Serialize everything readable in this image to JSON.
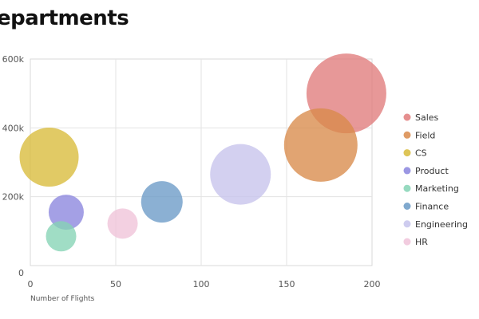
{
  "chart_data": {
    "type": "bubble",
    "title": "epartments",
    "xlabel": "Number of Flights",
    "ylabel": "",
    "xlim": [
      0,
      200
    ],
    "ylim": [
      0,
      600000
    ],
    "x_ticks": [
      {
        "value": 0,
        "label": "0"
      },
      {
        "value": 50,
        "label": "50"
      },
      {
        "value": 100,
        "label": "100"
      },
      {
        "value": 150,
        "label": "150"
      },
      {
        "value": 200,
        "label": "200"
      }
    ],
    "y_ticks": [
      {
        "value": 0,
        "label": "0"
      },
      {
        "value": 200000,
        "label": "200k"
      },
      {
        "value": 400000,
        "label": "400k"
      },
      {
        "value": 600000,
        "label": "600k"
      }
    ],
    "grid": true,
    "legend_position": "right",
    "series": [
      {
        "name": "Sales",
        "color": "#e07b7b",
        "x": 185,
        "y": 500000,
        "size": 50
      },
      {
        "name": "Field",
        "color": "#d98a4a",
        "x": 170,
        "y": 350000,
        "size": 46
      },
      {
        "name": "CS",
        "color": "#d8bb3a",
        "x": 11,
        "y": 315000,
        "size": 37
      },
      {
        "name": "Product",
        "color": "#8a85de",
        "x": 21,
        "y": 155000,
        "size": 22
      },
      {
        "name": "Marketing",
        "color": "#85d3b5",
        "x": 18,
        "y": 85000,
        "size": 19
      },
      {
        "name": "Finance",
        "color": "#6a9ac6",
        "x": 77,
        "y": 185000,
        "size": 26
      },
      {
        "name": "Engineering",
        "color": "#c6c3ec",
        "x": 123,
        "y": 265000,
        "size": 38
      },
      {
        "name": "HR",
        "color": "#f0c3d9",
        "x": 54,
        "y": 122000,
        "size": 19
      }
    ]
  }
}
